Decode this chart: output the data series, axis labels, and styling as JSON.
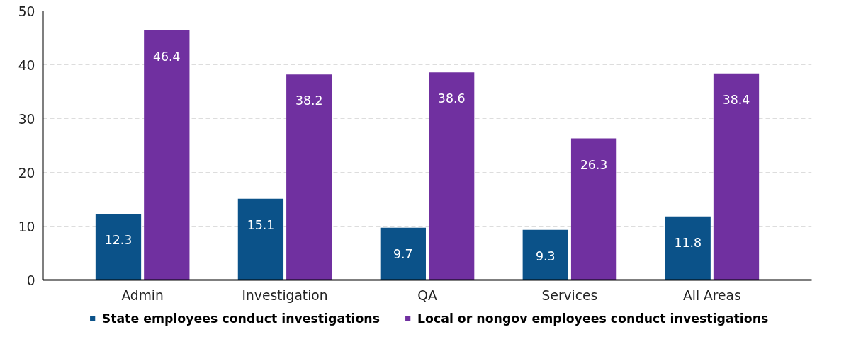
{
  "chart_data": {
    "type": "bar",
    "categories": [
      "Admin",
      "Investigation",
      "QA",
      "Services",
      "All Areas"
    ],
    "series": [
      {
        "name": "State employees conduct investigations",
        "color": "#0b5289",
        "values": [
          12.3,
          15.1,
          9.7,
          9.3,
          11.8
        ]
      },
      {
        "name": "Local or nongov employees conduct investigations",
        "color": "#7030a0",
        "values": [
          46.4,
          38.2,
          38.6,
          26.3,
          38.4
        ]
      }
    ],
    "ylim": [
      0,
      50
    ],
    "yticks": [
      0,
      10,
      20,
      30,
      40,
      50
    ],
    "grid": "y",
    "legend": "bottom",
    "data_labels": true
  }
}
